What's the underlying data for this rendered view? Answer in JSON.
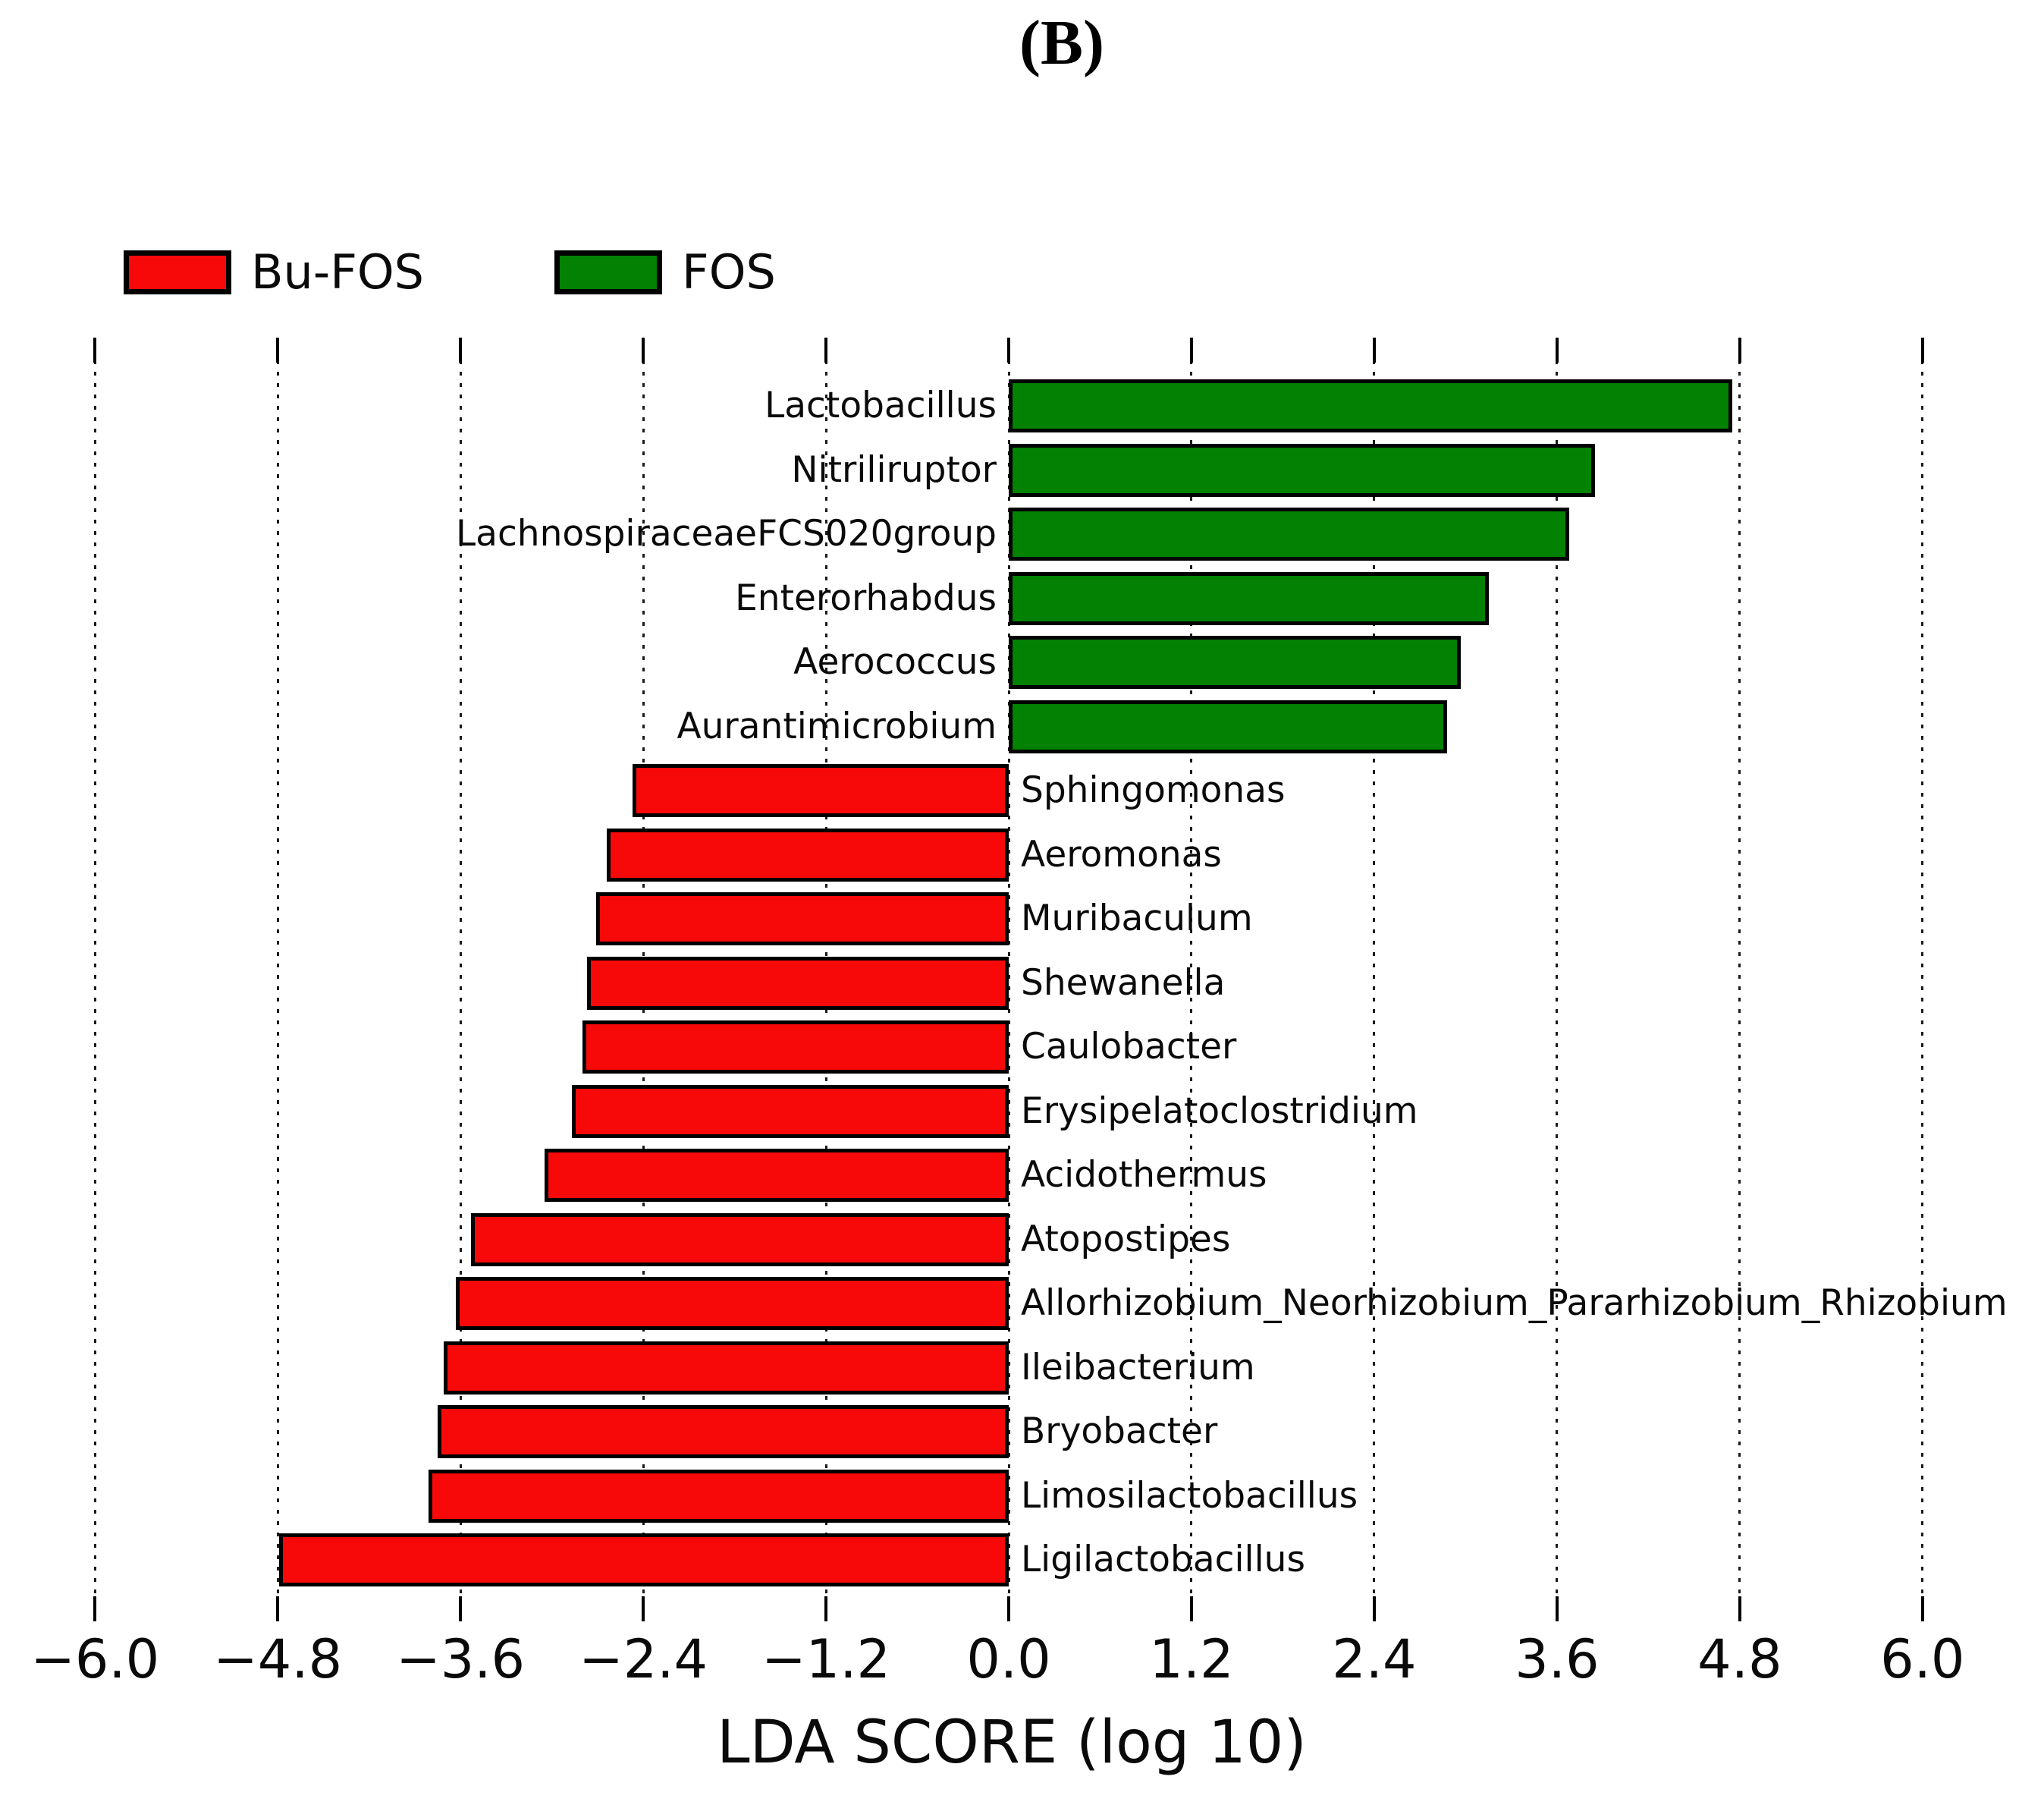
{
  "chart_data": {
    "type": "bar",
    "orientation": "horizontal",
    "title": "(B)",
    "xlabel": "LDA SCORE (log 10)",
    "xlim": [
      -6.0,
      6.0
    ],
    "xticks": [
      {
        "value": -6.0,
        "label": "−6.0"
      },
      {
        "value": -4.8,
        "label": "−4.8"
      },
      {
        "value": -3.6,
        "label": "−3.6"
      },
      {
        "value": -2.4,
        "label": "−2.4"
      },
      {
        "value": -1.2,
        "label": "−1.2"
      },
      {
        "value": 0.0,
        "label": "0.0"
      },
      {
        "value": 1.2,
        "label": "1.2"
      },
      {
        "value": 2.4,
        "label": "2.4"
      },
      {
        "value": 3.6,
        "label": "3.6"
      },
      {
        "value": 4.8,
        "label": "4.8"
      },
      {
        "value": 6.0,
        "label": "6.0"
      }
    ],
    "grid": "vertical-dotted",
    "legend_position": "top-left",
    "legend": [
      {
        "label": "Bu-FOS",
        "color": "#f80909"
      },
      {
        "label": "FOS",
        "color": "#028102"
      }
    ],
    "bars": [
      {
        "label": "Lactobacillus",
        "group": "FOS",
        "value": 4.75
      },
      {
        "label": "Nitriliruptor",
        "group": "FOS",
        "value": 3.85
      },
      {
        "label": "LachnospiraceaeFCS020group",
        "group": "FOS",
        "value": 3.68
      },
      {
        "label": "Enterorhabdus",
        "group": "FOS",
        "value": 3.15
      },
      {
        "label": "Aerococcus",
        "group": "FOS",
        "value": 2.97
      },
      {
        "label": "Aurantimicrobium",
        "group": "FOS",
        "value": 2.88
      },
      {
        "label": "Sphingomonas",
        "group": "Bu-FOS",
        "value": -2.47
      },
      {
        "label": "Aeromonas",
        "group": "Bu-FOS",
        "value": -2.64
      },
      {
        "label": "Muribaculum",
        "group": "Bu-FOS",
        "value": -2.71
      },
      {
        "label": "Shewanella",
        "group": "Bu-FOS",
        "value": -2.77
      },
      {
        "label": "Caulobacter",
        "group": "Bu-FOS",
        "value": -2.8
      },
      {
        "label": "Erysipelatoclostridium",
        "group": "Bu-FOS",
        "value": -2.87
      },
      {
        "label": "Acidothermus",
        "group": "Bu-FOS",
        "value": -3.05
      },
      {
        "label": "Atopostipes",
        "group": "Bu-FOS",
        "value": -3.53
      },
      {
        "label": "Allorhizobium_Neorhizobium_Pararhizobium_Rhizobium",
        "group": "Bu-FOS",
        "value": -3.63
      },
      {
        "label": "Ileibacterium",
        "group": "Bu-FOS",
        "value": -3.71
      },
      {
        "label": "Bryobacter",
        "group": "Bu-FOS",
        "value": -3.75
      },
      {
        "label": "Limosilactobacillus",
        "group": "Bu-FOS",
        "value": -3.81
      },
      {
        "label": "Ligilactobacillus",
        "group": "Bu-FOS",
        "value": -4.79
      }
    ]
  }
}
